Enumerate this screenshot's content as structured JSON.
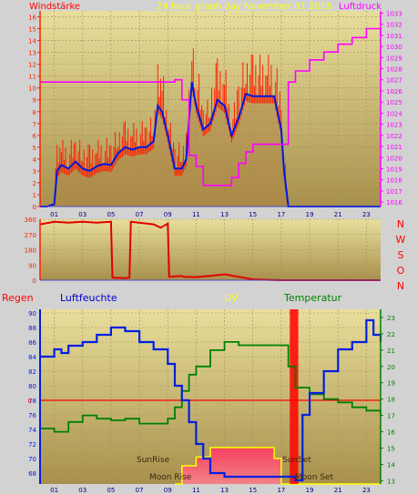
{
  "header": {
    "left_title": "Windstärke",
    "center_title": "24 hour graph day   November 01 2018",
    "right_title": "Luftdruck"
  },
  "wind_dir_labels": [
    "N",
    "W",
    "S",
    "O",
    "N"
  ],
  "bottom_header": {
    "regen": "Regen",
    "luftfeuchte": "Luftfeuchte",
    "uv": "UV",
    "temperatur": "Temperatur"
  },
  "annotations": {
    "sunrise": "SunRise",
    "sunset": "SunSet",
    "moonrise": "Moon Rise",
    "moonset": "Moon Set"
  },
  "colors": {
    "wind_gust": "#ff2000",
    "wind_avg": "#0018e0",
    "pressure": "#ff00ff",
    "direction": "#e00000",
    "humidity": "#0020e0",
    "temperature": "#008000",
    "uv": "#ffff00",
    "rain": "#ff0000",
    "grid": "#a09060"
  },
  "chart_data": [
    {
      "type": "line",
      "title": "24 hour graph day   November 01 2018",
      "x_ticks": [
        "01",
        "03",
        "05",
        "07",
        "09",
        "11",
        "13",
        "15",
        "17",
        "19",
        "21",
        "23"
      ],
      "xlim": [
        0,
        24
      ],
      "left_axis": {
        "label": "Windstärke",
        "ticks": [
          0,
          1,
          2,
          3,
          4,
          5,
          6,
          7,
          8,
          9,
          10,
          11,
          12,
          13,
          14,
          15,
          16
        ],
        "ylim": [
          0,
          16.5
        ]
      },
      "right_axis": {
        "label": "Luftdruck",
        "ticks": [
          1016,
          1017,
          1018,
          1019,
          1020,
          1021,
          1022,
          1023,
          1024,
          1025,
          1026,
          1027,
          1028,
          1029,
          1030,
          1031,
          1032,
          1033
        ],
        "ylim": [
          1015.6,
          1033.2
        ]
      },
      "series": [
        {
          "name": "Windstärke",
          "axis": "left",
          "x": [
            0,
            0.5,
            1,
            1.2,
            1.5,
            2,
            2.5,
            3,
            3.5,
            4,
            4.5,
            5,
            5.5,
            6,
            6.5,
            7,
            7.5,
            8,
            8.3,
            8.6,
            9,
            9.5,
            10,
            10.3,
            10.7,
            11,
            11.5,
            12,
            12.5,
            13,
            13.5,
            14,
            14.5,
            15,
            16,
            16.5,
            17,
            17.2,
            17.5,
            18,
            19,
            20,
            21,
            22,
            23,
            24
          ],
          "y": [
            0,
            0,
            0.2,
            3,
            3.5,
            3.2,
            3.8,
            3.2,
            3,
            3.4,
            3.6,
            3.5,
            4.5,
            5,
            4.8,
            5,
            5,
            5.5,
            8.5,
            8,
            6,
            3.2,
            3.2,
            4,
            10.5,
            8.5,
            6.5,
            7,
            9,
            8.5,
            6,
            7.5,
            9.5,
            9.3,
            9.3,
            9.3,
            6.5,
            3,
            0,
            0,
            0,
            0,
            0,
            0,
            0,
            0
          ]
        },
        {
          "name": "Luftdruck",
          "axis": "right",
          "x": [
            0,
            2,
            4,
            5,
            6,
            7,
            8,
            9,
            9.5,
            10,
            10.5,
            11,
            11.5,
            12,
            12.5,
            13,
            13.5,
            14,
            14.5,
            15,
            16,
            17,
            17.5,
            18,
            19,
            20,
            21,
            22,
            23,
            23.5,
            24
          ],
          "y": [
            1026.8,
            1026.8,
            1026.8,
            1026.8,
            1026.8,
            1026.8,
            1026.8,
            1026.8,
            1027,
            1025.2,
            1020.2,
            1019.2,
            1017.5,
            1017.5,
            1017.5,
            1017.5,
            1018.2,
            1019.5,
            1020.5,
            1021.2,
            1021.2,
            1021.2,
            1026.8,
            1027.8,
            1028.8,
            1029.5,
            1030.2,
            1030.8,
            1031.6,
            1031.6,
            1031
          ]
        }
      ]
    },
    {
      "type": "line",
      "title": "",
      "x_ticks": [],
      "xlim": [
        0,
        24
      ],
      "axis": {
        "ticks": [
          0,
          90,
          180,
          270,
          360
        ],
        "ylim": [
          0,
          360
        ]
      },
      "series": [
        {
          "name": "Windrichtung",
          "x": [
            0,
            1,
            2,
            3,
            4,
            5,
            5.1,
            6,
            6.3,
            6.4,
            8,
            8.5,
            9,
            9.1,
            10,
            10.1,
            11,
            12,
            13,
            14,
            15,
            16,
            17,
            18,
            19,
            20,
            21,
            22,
            23,
            24
          ],
          "y": [
            330,
            345,
            340,
            345,
            340,
            345,
            15,
            12,
            15,
            345,
            330,
            310,
            335,
            20,
            25,
            20,
            18,
            25,
            35,
            20,
            5,
            2,
            0,
            0,
            0,
            0,
            0,
            0,
            0,
            0
          ]
        }
      ]
    },
    {
      "type": "line",
      "title": "",
      "x_ticks": [
        "01",
        "03",
        "05",
        "07",
        "09",
        "11",
        "13",
        "15",
        "17",
        "19",
        "21",
        "23"
      ],
      "xlim": [
        0,
        24
      ],
      "left_axis": {
        "label": "Luftfeuchte",
        "ticks": [
          68,
          70,
          72,
          74,
          76,
          78,
          80,
          82,
          84,
          86,
          88,
          90
        ],
        "ylim": [
          66.5,
          90.5
        ]
      },
      "right_axis": {
        "label": "Temperatur",
        "ticks": [
          13,
          14,
          15,
          16,
          17,
          18,
          19,
          20,
          21,
          22,
          23
        ],
        "ylim": [
          12.8,
          23.5
        ]
      },
      "rain_axis": {
        "label": "Regen",
        "ticks": [
          0
        ]
      },
      "uv_axis": {
        "label": "UV"
      },
      "series": [
        {
          "name": "Luftfeuchte",
          "axis": "left",
          "x": [
            0,
            1,
            1.5,
            2,
            3,
            4,
            5,
            6,
            7,
            8,
            9,
            9.5,
            10,
            10.5,
            11,
            11.5,
            12,
            12.5,
            13,
            14,
            15,
            16,
            17,
            17.5,
            18,
            18.5,
            19,
            20,
            21,
            22,
            23,
            23.5,
            24
          ],
          "y": [
            84,
            85,
            84.5,
            85.5,
            86,
            87,
            88,
            87.5,
            86,
            85,
            83,
            80,
            78,
            75,
            72,
            70,
            68,
            68,
            67.5,
            67.5,
            67.5,
            67.5,
            67.5,
            67.5,
            67,
            76,
            79,
            82,
            85,
            86,
            89,
            87,
            86
          ]
        },
        {
          "name": "Temperatur",
          "axis": "right",
          "x": [
            0,
            1,
            2,
            3,
            4,
            5,
            6,
            7,
            8,
            9,
            9.5,
            10,
            10.5,
            11,
            12,
            13,
            14,
            15,
            16,
            17,
            17.5,
            18,
            19,
            20,
            21,
            22,
            23,
            24
          ],
          "y": [
            16.2,
            16,
            16.6,
            17,
            16.8,
            16.7,
            16.8,
            16.5,
            16.5,
            16.8,
            17.5,
            18.5,
            19.5,
            20,
            21,
            21.5,
            21.3,
            21.3,
            21.3,
            21.3,
            20,
            18.7,
            18.3,
            18,
            17.8,
            17.5,
            17.3,
            17
          ]
        },
        {
          "name": "UV",
          "axis": "left",
          "x": [
            9.5,
            10,
            10.5,
            11,
            11.5,
            12,
            13,
            14,
            15,
            16,
            16.5,
            17,
            24
          ],
          "y": [
            66.5,
            69,
            69,
            70.2,
            70.2,
            71.5,
            71.5,
            71.5,
            71.5,
            71.5,
            70,
            66.5,
            66.5
          ]
        },
        {
          "name": "Regen",
          "axis": "left",
          "x": [
            17.6,
            18.2
          ],
          "y": [
            90.5,
            90.5
          ]
        }
      ]
    }
  ]
}
